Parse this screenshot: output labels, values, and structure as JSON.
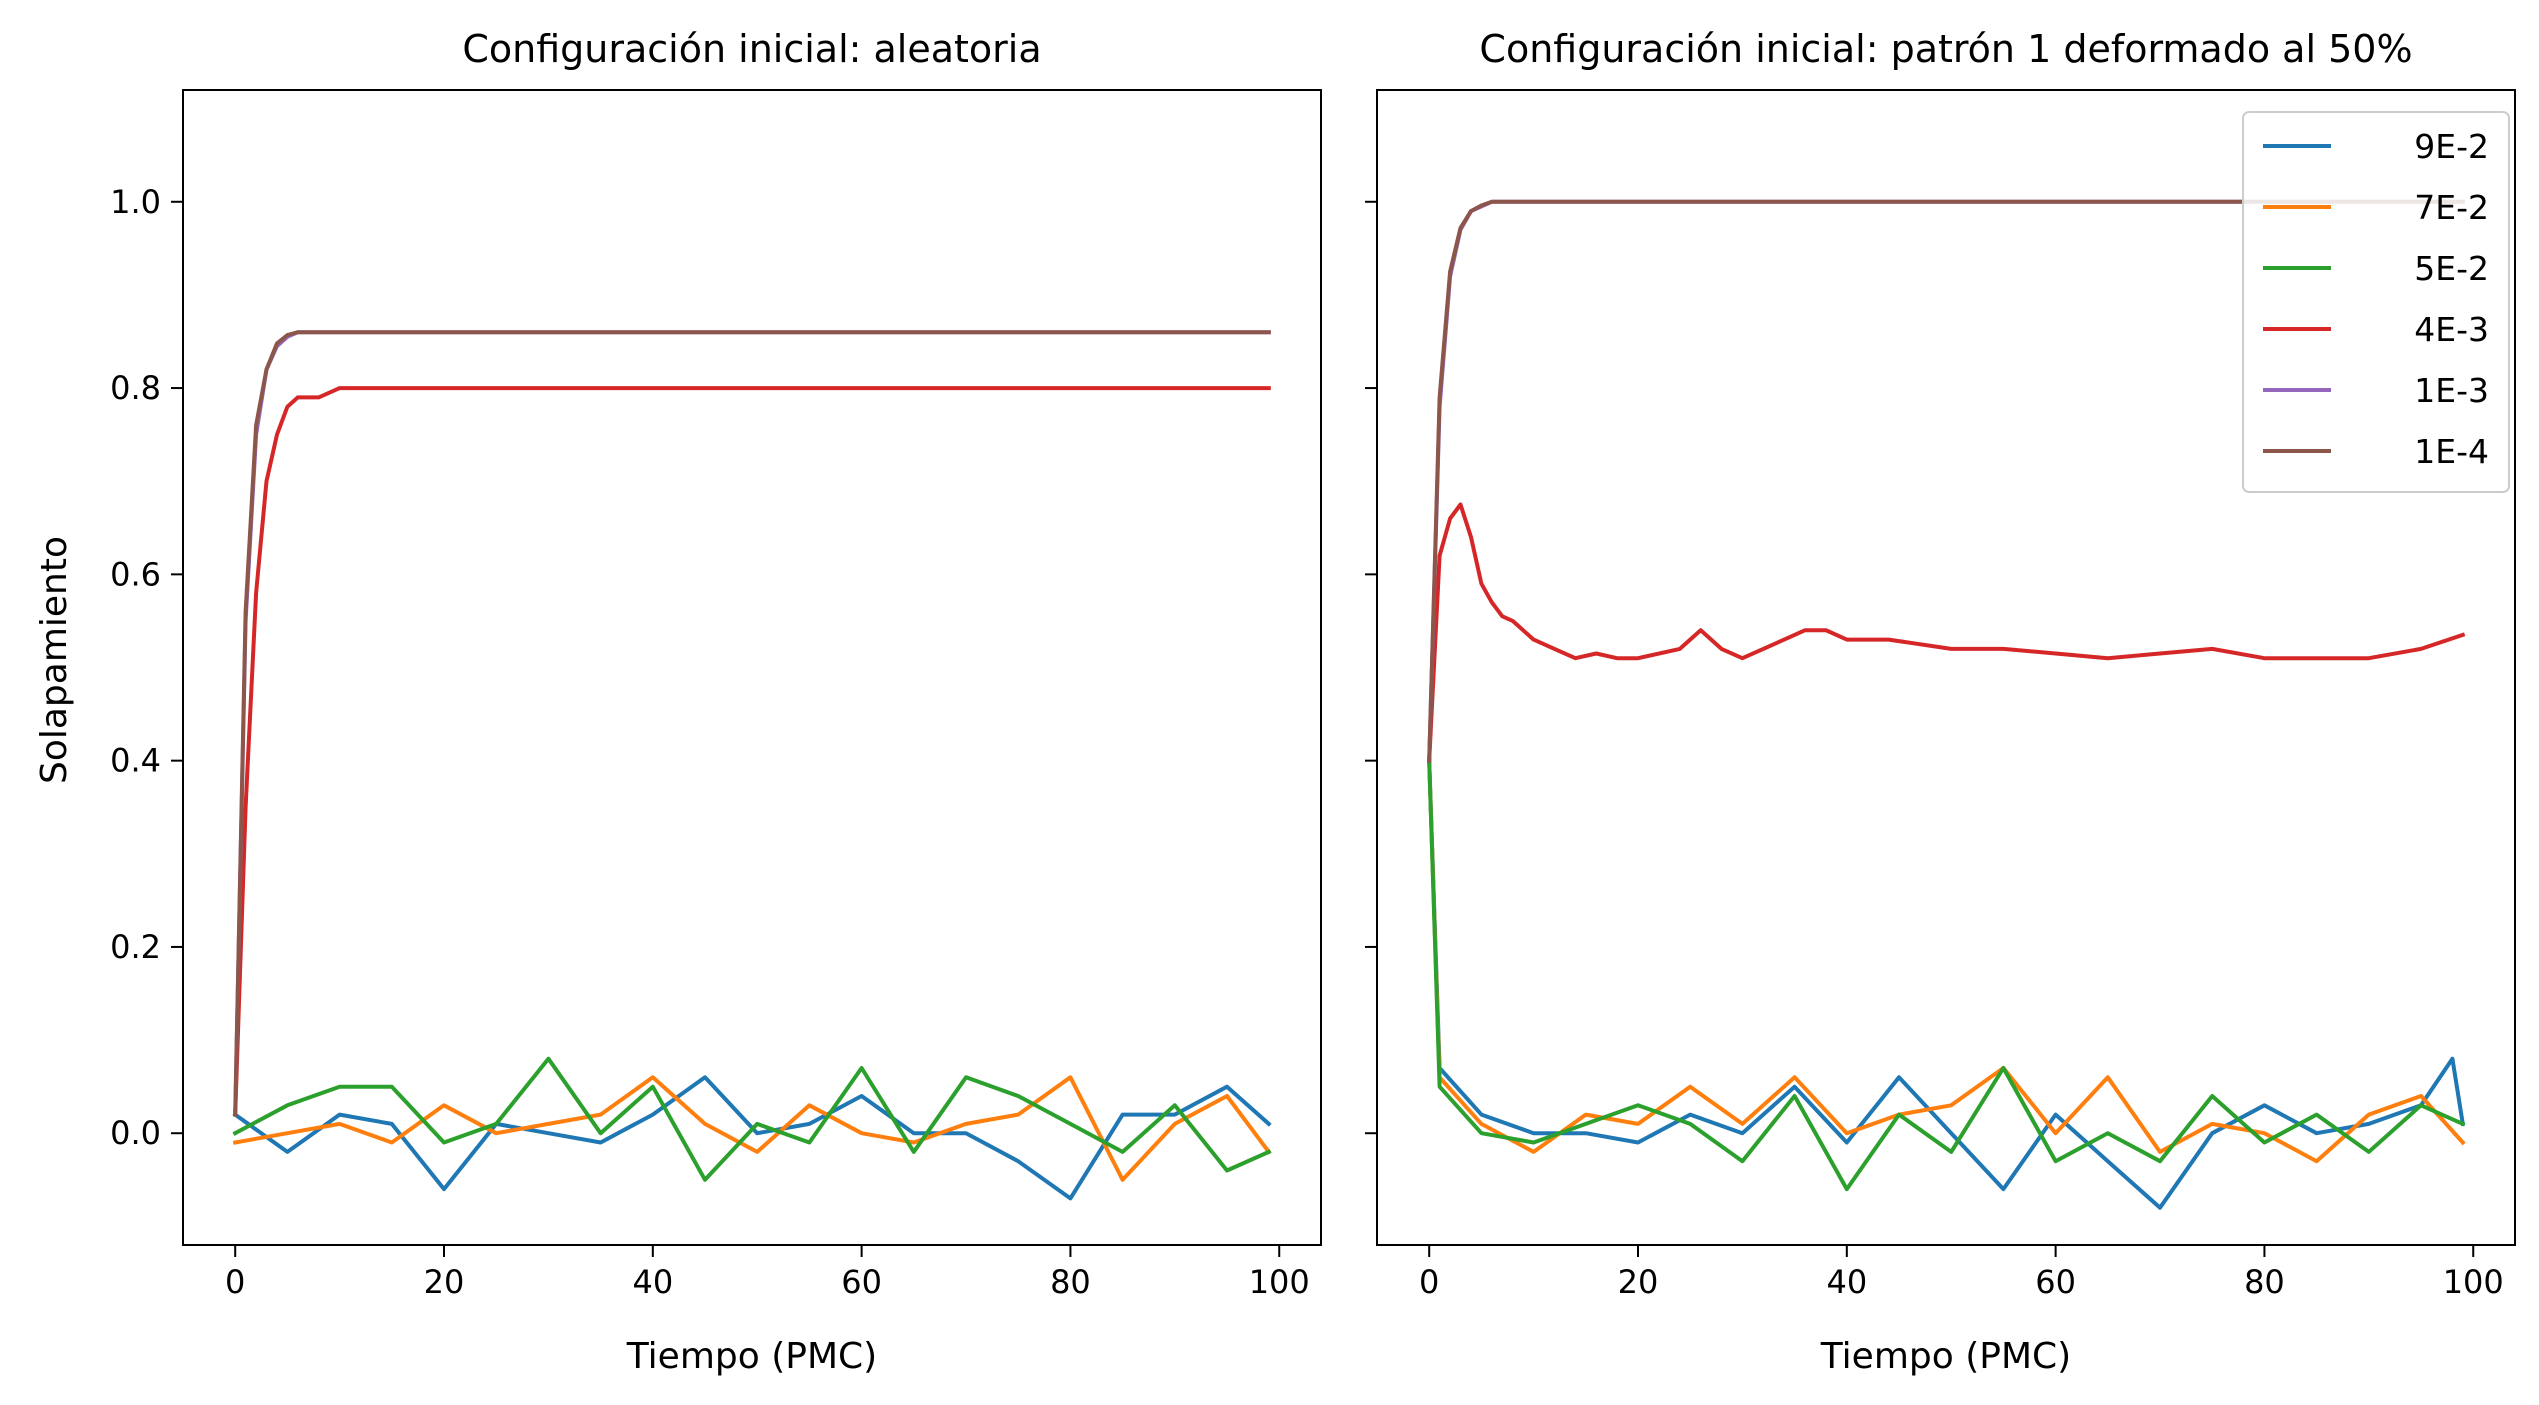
{
  "chart_data": [
    {
      "type": "line",
      "title": "Configuración inicial: aleatoria",
      "xlabel": "Tiempo (PMC)",
      "ylabel": "Solapamiento",
      "xlim": [
        -5,
        104
      ],
      "ylim": [
        -0.12,
        1.12
      ],
      "xticks": [
        "0",
        "20",
        "40",
        "60",
        "80",
        "100"
      ],
      "yticks": [
        "0.0",
        "0.2",
        "0.4",
        "0.6",
        "0.8",
        "1.0"
      ],
      "grid": false,
      "legend": null,
      "series": [
        {
          "name": "9E-2",
          "color": "#1f77b4",
          "x": [
            0,
            5,
            10,
            15,
            20,
            25,
            30,
            35,
            40,
            45,
            50,
            55,
            60,
            65,
            70,
            75,
            80,
            85,
            90,
            95,
            99
          ],
          "y": [
            0.02,
            -0.02,
            0.02,
            0.01,
            -0.06,
            0.01,
            0.0,
            -0.01,
            0.02,
            0.06,
            0.0,
            0.01,
            0.04,
            0.0,
            0.0,
            -0.03,
            -0.07,
            0.02,
            0.02,
            0.05,
            0.01
          ]
        },
        {
          "name": "7E-2",
          "color": "#ff7f0e",
          "x": [
            0,
            5,
            10,
            15,
            20,
            25,
            30,
            35,
            40,
            45,
            50,
            55,
            60,
            65,
            70,
            75,
            80,
            85,
            90,
            95,
            99
          ],
          "y": [
            -0.01,
            0.0,
            0.01,
            -0.01,
            0.03,
            0.0,
            0.01,
            0.02,
            0.06,
            0.01,
            -0.02,
            0.03,
            0.0,
            -0.01,
            0.01,
            0.02,
            0.06,
            -0.05,
            0.01,
            0.04,
            -0.02
          ]
        },
        {
          "name": "5E-2",
          "color": "#2ca02c",
          "x": [
            0,
            5,
            10,
            15,
            20,
            25,
            30,
            35,
            40,
            45,
            50,
            55,
            60,
            65,
            70,
            75,
            80,
            85,
            90,
            95,
            99
          ],
          "y": [
            0.0,
            0.03,
            0.05,
            0.05,
            -0.01,
            0.01,
            0.08,
            0.0,
            0.05,
            -0.05,
            0.01,
            -0.01,
            0.07,
            -0.02,
            0.06,
            0.04,
            0.01,
            -0.02,
            0.03,
            -0.04,
            -0.02
          ]
        },
        {
          "name": "4E-3",
          "color": "#d62728",
          "x": [
            0,
            1,
            2,
            3,
            4,
            5,
            6,
            8,
            10,
            14,
            20,
            25,
            30,
            40,
            50,
            60,
            70,
            80,
            90,
            99
          ],
          "y": [
            0.02,
            0.35,
            0.58,
            0.7,
            0.75,
            0.78,
            0.79,
            0.79,
            0.8,
            0.8,
            0.8,
            0.8,
            0.8,
            0.8,
            0.8,
            0.8,
            0.8,
            0.8,
            0.8,
            0.8
          ]
        },
        {
          "name": "1E-3",
          "color": "#9467bd",
          "x": [
            0,
            1,
            2,
            3,
            4,
            5,
            6,
            8,
            10,
            20,
            30,
            40,
            50,
            60,
            70,
            80,
            90,
            99
          ],
          "y": [
            0.02,
            0.55,
            0.75,
            0.82,
            0.845,
            0.855,
            0.86,
            0.86,
            0.86,
            0.86,
            0.86,
            0.86,
            0.86,
            0.86,
            0.86,
            0.86,
            0.86,
            0.86
          ]
        },
        {
          "name": "1E-4",
          "color": "#8c564b",
          "x": [
            0,
            1,
            2,
            3,
            4,
            5,
            6,
            8,
            10,
            20,
            30,
            40,
            50,
            60,
            70,
            80,
            90,
            99
          ],
          "y": [
            0.02,
            0.56,
            0.76,
            0.82,
            0.848,
            0.857,
            0.86,
            0.86,
            0.86,
            0.86,
            0.86,
            0.86,
            0.86,
            0.86,
            0.86,
            0.86,
            0.86,
            0.86
          ]
        }
      ]
    },
    {
      "type": "line",
      "title": "Configuración inicial: patrón 1 deformado al 50%",
      "xlabel": "Tiempo (PMC)",
      "ylabel": "",
      "xlim": [
        -5,
        104
      ],
      "ylim": [
        -0.12,
        1.12
      ],
      "xticks": [
        "0",
        "20",
        "40",
        "60",
        "80",
        "100"
      ],
      "yticks": [],
      "grid": false,
      "legend": "top-right",
      "series": [
        {
          "name": "9E-2",
          "color": "#1f77b4",
          "x": [
            0,
            1,
            5,
            10,
            15,
            20,
            25,
            30,
            35,
            40,
            45,
            50,
            55,
            60,
            65,
            70,
            75,
            80,
            85,
            90,
            95,
            98,
            99
          ],
          "y": [
            0.4,
            0.07,
            0.02,
            0.0,
            0.0,
            -0.01,
            0.02,
            0.0,
            0.05,
            -0.01,
            0.06,
            0.0,
            -0.06,
            0.02,
            -0.03,
            -0.08,
            0.0,
            0.03,
            0.0,
            0.01,
            0.03,
            0.08,
            0.01
          ]
        },
        {
          "name": "7E-2",
          "color": "#ff7f0e",
          "x": [
            0,
            1,
            5,
            10,
            15,
            20,
            25,
            30,
            35,
            40,
            45,
            50,
            55,
            60,
            65,
            70,
            75,
            80,
            85,
            90,
            95,
            99
          ],
          "y": [
            0.4,
            0.06,
            0.01,
            -0.02,
            0.02,
            0.01,
            0.05,
            0.01,
            0.06,
            0.0,
            0.02,
            0.03,
            0.07,
            0.0,
            0.06,
            -0.02,
            0.01,
            0.0,
            -0.03,
            0.02,
            0.04,
            -0.01
          ]
        },
        {
          "name": "5E-2",
          "color": "#2ca02c",
          "x": [
            0,
            1,
            5,
            10,
            15,
            20,
            25,
            30,
            35,
            40,
            45,
            50,
            55,
            60,
            65,
            70,
            75,
            80,
            85,
            90,
            95,
            99
          ],
          "y": [
            0.4,
            0.05,
            0.0,
            -0.01,
            0.01,
            0.03,
            0.01,
            -0.03,
            0.04,
            -0.06,
            0.02,
            -0.02,
            0.07,
            -0.03,
            0.0,
            -0.03,
            0.04,
            -0.01,
            0.02,
            -0.02,
            0.03,
            0.01
          ]
        },
        {
          "name": "4E-3",
          "color": "#d62728",
          "x": [
            0,
            1,
            2,
            3,
            4,
            5,
            6,
            7,
            8,
            10,
            12,
            14,
            16,
            18,
            20,
            24,
            26,
            28,
            30,
            34,
            36,
            38,
            40,
            44,
            50,
            55,
            60,
            65,
            70,
            75,
            80,
            85,
            90,
            95,
            99
          ],
          "y": [
            0.4,
            0.62,
            0.66,
            0.675,
            0.64,
            0.59,
            0.57,
            0.555,
            0.55,
            0.53,
            0.52,
            0.51,
            0.515,
            0.51,
            0.51,
            0.52,
            0.54,
            0.52,
            0.51,
            0.53,
            0.54,
            0.54,
            0.53,
            0.53,
            0.52,
            0.52,
            0.515,
            0.51,
            0.515,
            0.52,
            0.51,
            0.51,
            0.51,
            0.52,
            0.535
          ]
        },
        {
          "name": "1E-3",
          "color": "#9467bd",
          "x": [
            0,
            1,
            2,
            3,
            4,
            5,
            6,
            8,
            10,
            20,
            30,
            40,
            50,
            60,
            70,
            80,
            90,
            99
          ],
          "y": [
            0.4,
            0.78,
            0.92,
            0.97,
            0.99,
            0.995,
            1.0,
            1.0,
            1.0,
            1.0,
            1.0,
            1.0,
            1.0,
            1.0,
            1.0,
            1.0,
            1.0,
            1.0
          ]
        },
        {
          "name": "1E-4",
          "color": "#8c564b",
          "x": [
            0,
            1,
            2,
            3,
            4,
            5,
            6,
            8,
            10,
            20,
            30,
            40,
            50,
            60,
            70,
            80,
            90,
            99
          ],
          "y": [
            0.4,
            0.79,
            0.925,
            0.972,
            0.99,
            0.996,
            1.0,
            1.0,
            1.0,
            1.0,
            1.0,
            1.0,
            1.0,
            1.0,
            1.0,
            1.0,
            1.0,
            1.0
          ]
        }
      ]
    }
  ]
}
